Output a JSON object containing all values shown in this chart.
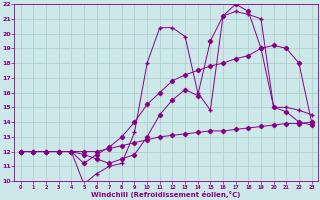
{
  "background_color": "#cce8e8",
  "grid_color": "#aacccc",
  "line_color": "#880088",
  "xlabel": "Windchill (Refroidissement éolien,°C)",
  "xlim": [
    -0.5,
    23.5
  ],
  "ylim": [
    10,
    22
  ],
  "xticks": [
    0,
    1,
    2,
    3,
    4,
    5,
    6,
    7,
    8,
    9,
    10,
    11,
    12,
    13,
    14,
    15,
    16,
    17,
    18,
    19,
    20,
    21,
    22,
    23
  ],
  "yticks": [
    10,
    11,
    12,
    13,
    14,
    15,
    16,
    17,
    18,
    19,
    20,
    21,
    22
  ],
  "s1_x": [
    0,
    1,
    2,
    3,
    4,
    5,
    6,
    7,
    8,
    9,
    10,
    11,
    12,
    13,
    14,
    15,
    16,
    17,
    18,
    19,
    20,
    21,
    22,
    23
  ],
  "s1_y": [
    12,
    12,
    12,
    12,
    12,
    11.8,
    11.5,
    11.2,
    11.5,
    11.8,
    13,
    14.5,
    15.5,
    16.2,
    15.8,
    19.5,
    21.2,
    22,
    21.5,
    19.0,
    15.0,
    14.7,
    14.0,
    13.8
  ],
  "s2_x": [
    0,
    1,
    2,
    3,
    4,
    5,
    6,
    7,
    8,
    9,
    10,
    11,
    12,
    13,
    14,
    15,
    16,
    17,
    18,
    19,
    20,
    21,
    22,
    23
  ],
  "s2_y": [
    12,
    12,
    12,
    12,
    12,
    9.8,
    10.5,
    11.0,
    11.2,
    13.3,
    18,
    20.4,
    20.4,
    19.8,
    16.0,
    14.8,
    21.2,
    21.5,
    21.3,
    21.0,
    15.0,
    15.0,
    14.8,
    14.5
  ],
  "s3_x": [
    0,
    1,
    2,
    3,
    4,
    5,
    6,
    7,
    8,
    9,
    10,
    11,
    12,
    13,
    14,
    15,
    16,
    17,
    18,
    19,
    20,
    21,
    22,
    23
  ],
  "s3_y": [
    12,
    12,
    12,
    12,
    12,
    12,
    12,
    12.2,
    12.4,
    12.6,
    12.8,
    13.0,
    13.1,
    13.2,
    13.3,
    13.4,
    13.4,
    13.5,
    13.6,
    13.7,
    13.8,
    13.9,
    13.9,
    14.0
  ],
  "s4_x": [
    0,
    1,
    2,
    3,
    4,
    5,
    6,
    7,
    8,
    9,
    10,
    11,
    12,
    13,
    14,
    15,
    16,
    17,
    18,
    19,
    20,
    21,
    22,
    23
  ],
  "s4_y": [
    12,
    12,
    12,
    12,
    12,
    11.2,
    11.8,
    12.3,
    13.0,
    14.0,
    15.2,
    16.0,
    16.8,
    17.2,
    17.5,
    17.8,
    18.0,
    18.3,
    18.5,
    19.0,
    19.2,
    19.0,
    18.0,
    14.0
  ]
}
